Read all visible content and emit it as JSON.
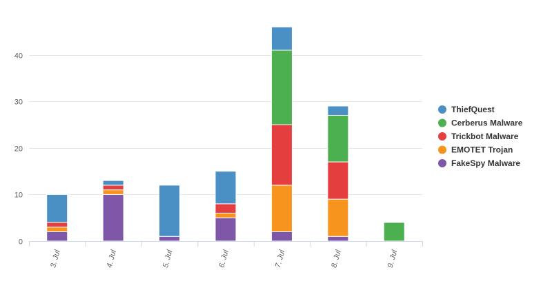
{
  "chart_data": {
    "type": "bar",
    "stacked": true,
    "categories": [
      "3. Jul",
      "4. Jul",
      "5. Jul",
      "6. Jul",
      "7. Jul",
      "8. Jul",
      "9. Jul"
    ],
    "series": [
      {
        "name": "ThiefQuest",
        "color": "#4a90c4",
        "values": [
          6,
          1,
          11,
          7,
          5,
          2,
          0
        ]
      },
      {
        "name": "Cerberus Malware",
        "color": "#4caf50",
        "values": [
          0,
          0,
          0,
          0,
          16,
          10,
          4
        ]
      },
      {
        "name": "Trickbot Malware",
        "color": "#e53e3e",
        "values": [
          1,
          1,
          0,
          2,
          13,
          8,
          0
        ]
      },
      {
        "name": "EMOTET Trojan",
        "color": "#f7941d",
        "values": [
          1,
          1,
          0,
          1,
          10,
          8,
          0
        ]
      },
      {
        "name": "FakeSpy Malware",
        "color": "#7e57a8",
        "values": [
          2,
          10,
          1,
          5,
          2,
          1,
          0
        ]
      }
    ],
    "ylim": [
      0,
      50
    ],
    "yticks": [
      0,
      10,
      20,
      30,
      40
    ],
    "xlabel": "",
    "ylabel": "",
    "title": "",
    "grid": true,
    "legend_position": "right"
  }
}
